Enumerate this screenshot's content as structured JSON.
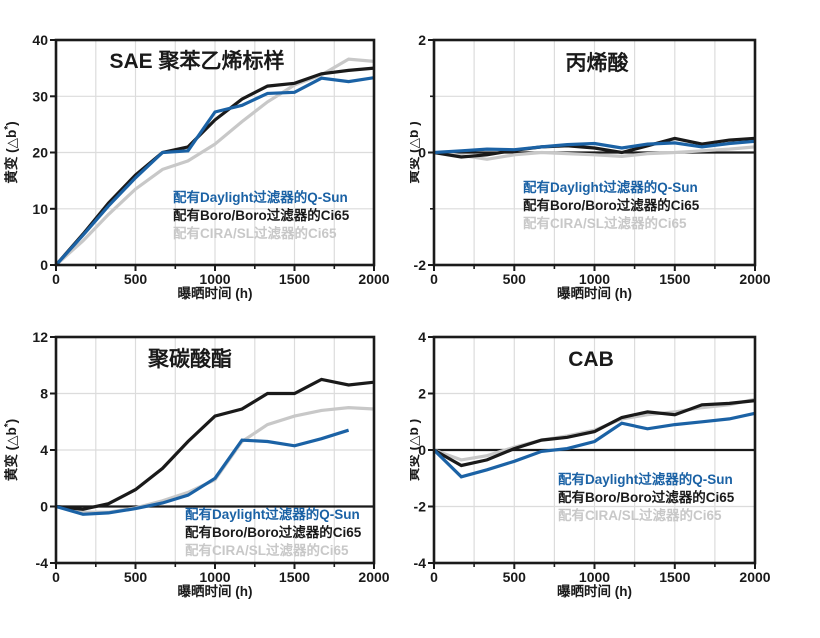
{
  "page": {
    "background": "#ffffff"
  },
  "palette": {
    "qsun_blue": "#1b62a5",
    "ci65_black": "#1a1a1a",
    "cira_gray": "#c8c8c8",
    "grid_gray": "#dcdcdc",
    "axis_black": "#1a1a1a"
  },
  "legend_labels": [
    "配有Daylight过滤器的Q-Sun",
    "配有Boro/Boro过滤器的Ci65",
    "配有CIRA/SL过滤器的Ci65"
  ],
  "chart_data": [
    {
      "id": "sae-polystyrene",
      "type": "line",
      "title": "SAE 聚苯乙烯标样",
      "xlabel": "曝晒时间  (h)",
      "ylabel": "黄变 (△b*)",
      "xlim": [
        0,
        2000
      ],
      "ylim": [
        0,
        40
      ],
      "xticks": [
        0,
        500,
        1000,
        1500,
        2000
      ],
      "yticks": [
        0,
        10,
        20,
        30,
        40
      ],
      "yticks_minor": [],
      "ygrid": [
        10,
        20,
        30
      ],
      "xgrid_step": 250,
      "zero_line": false,
      "grid": true,
      "legend_position": "inside-lower-middle",
      "x": [
        0,
        170,
        330,
        500,
        670,
        830,
        1000,
        1170,
        1330,
        1500,
        1670,
        1840,
        2000
      ],
      "series": [
        {
          "key": "qsun-daylight",
          "name": "配有Daylight过滤器的Q-Sun",
          "color": "#1b62a5",
          "values": [
            0,
            5.3,
            10.5,
            15.5,
            20,
            20.3,
            27.2,
            28.4,
            30.5,
            30.7,
            33.2,
            32.6,
            33.3
          ]
        },
        {
          "key": "ci65-boro",
          "name": "配有Boro/Boro过滤器的Ci65",
          "color": "#1a1a1a",
          "values": [
            0,
            5.5,
            11,
            16,
            20,
            21,
            25.8,
            29.5,
            31.8,
            32.3,
            34,
            34.6,
            35
          ]
        },
        {
          "key": "ci65-cira",
          "name": "配有CIRA/SL过滤器的Ci65",
          "color": "#c8c8c8",
          "values": [
            0,
            4.3,
            9,
            13.5,
            17,
            18.5,
            21.5,
            25.5,
            29,
            32,
            33.8,
            36.6,
            36.2
          ]
        }
      ]
    },
    {
      "id": "acrylic",
      "type": "line",
      "title": "丙烯酸",
      "xlabel": "曝晒时间  (h)",
      "ylabel": "黄变 (△b*)",
      "xlim": [
        0,
        2000
      ],
      "ylim": [
        -2,
        2
      ],
      "xticks": [
        0,
        500,
        1000,
        1500,
        2000
      ],
      "yticks": [
        -2,
        0,
        2
      ],
      "yticks_minor": [
        -1,
        1
      ],
      "ygrid": [
        -1,
        1
      ],
      "xgrid_step": 250,
      "zero_line": true,
      "grid": true,
      "legend_position": "inside-lower-middle",
      "x": [
        0,
        170,
        330,
        500,
        670,
        830,
        1000,
        1170,
        1330,
        1500,
        1670,
        1840,
        2000
      ],
      "series": [
        {
          "key": "qsun-daylight",
          "name": "配有Daylight过滤器的Q-Sun",
          "color": "#1b62a5",
          "values": [
            0,
            0.03,
            0.06,
            0.05,
            0.1,
            0.14,
            0.16,
            0.08,
            0.15,
            0.17,
            0.1,
            0.16,
            0.2
          ]
        },
        {
          "key": "ci65-boro",
          "name": "配有Boro/Boro过滤器的Ci65",
          "color": "#1a1a1a",
          "values": [
            0,
            -0.08,
            -0.04,
            0.04,
            0.1,
            0.12,
            0.08,
            0,
            0.12,
            0.25,
            0.15,
            0.22,
            0.25
          ]
        },
        {
          "key": "ci65-cira",
          "name": "配有CIRA/SL过滤器的Ci65",
          "color": "#c8c8c8",
          "values": [
            0,
            -0.05,
            -0.12,
            -0.04,
            0,
            -0.02,
            -0.04,
            -0.07,
            -0.02,
            0,
            0.03,
            0.06,
            0.1
          ]
        }
      ]
    },
    {
      "id": "polycarbonate",
      "type": "line",
      "title": "聚碳酸酯",
      "xlabel": "曝晒时间  (h)",
      "ylabel": "黄变 (△b*)",
      "xlim": [
        0,
        2000
      ],
      "ylim": [
        -4,
        12
      ],
      "xticks": [
        0,
        500,
        1000,
        1500,
        2000
      ],
      "yticks": [
        -4,
        0,
        4,
        8,
        12
      ],
      "yticks_minor": [],
      "ygrid": [
        4,
        8
      ],
      "xgrid_step": 250,
      "zero_line": true,
      "grid": true,
      "legend_position": "inside-lower-middle",
      "x": [
        0,
        170,
        330,
        500,
        670,
        830,
        1000,
        1170,
        1330,
        1500,
        1670,
        1840,
        2000
      ],
      "series": [
        {
          "key": "qsun-daylight",
          "name": "配有Daylight过滤器的Q-Sun",
          "color": "#1b62a5",
          "values": [
            0,
            -0.55,
            -0.45,
            -0.15,
            0.25,
            0.8,
            2,
            4.7,
            4.6,
            4.3,
            4.8,
            5.4,
            null
          ]
        },
        {
          "key": "ci65-boro",
          "name": "配有Boro/Boro过滤器的Ci65",
          "color": "#1a1a1a",
          "values": [
            0,
            -0.2,
            0.2,
            1.2,
            2.7,
            4.6,
            6.4,
            6.9,
            8,
            8,
            9,
            8.6,
            8.8
          ]
        },
        {
          "key": "ci65-cira",
          "name": "配有CIRA/SL过滤器的Ci65",
          "color": "#c8c8c8",
          "values": [
            0,
            -0.4,
            -0.4,
            -0.1,
            0.4,
            1,
            1.9,
            4.6,
            5.8,
            6.4,
            6.8,
            7,
            6.9
          ]
        }
      ]
    },
    {
      "id": "cab",
      "type": "line",
      "title": "CAB",
      "xlabel": "曝晒时间  (h)",
      "ylabel": "黄变 (△b*)",
      "xlim": [
        0,
        2000
      ],
      "ylim": [
        -4,
        4
      ],
      "xticks": [
        0,
        500,
        1000,
        1500,
        2000
      ],
      "yticks": [
        -4,
        -2,
        0,
        2,
        4
      ],
      "yticks_minor": [],
      "ygrid": [
        -2,
        2
      ],
      "xgrid_step": 250,
      "zero_line": true,
      "grid": true,
      "legend_position": "inside-lower-middle",
      "x": [
        0,
        170,
        330,
        500,
        670,
        830,
        1000,
        1170,
        1330,
        1500,
        1670,
        1840,
        2000
      ],
      "series": [
        {
          "key": "qsun-daylight",
          "name": "配有Daylight过滤器的Q-Sun",
          "color": "#1b62a5",
          "values": [
            0,
            -0.95,
            -0.7,
            -0.4,
            -0.05,
            0.05,
            0.3,
            0.95,
            0.75,
            0.9,
            1,
            1.1,
            1.3
          ]
        },
        {
          "key": "ci65-boro",
          "name": "配有Boro/Boro过滤器的Ci65",
          "color": "#1a1a1a",
          "values": [
            0,
            -0.55,
            -0.35,
            0.05,
            0.35,
            0.45,
            0.65,
            1.15,
            1.35,
            1.25,
            1.6,
            1.65,
            1.75
          ]
        },
        {
          "key": "ci65-cira",
          "name": "配有CIRA/SL过滤器的Ci65",
          "color": "#c8c8c8",
          "values": [
            0,
            -0.35,
            -0.2,
            0.1,
            0.35,
            0.5,
            0.7,
            1.1,
            1.25,
            1.35,
            1.5,
            1.6,
            1.8
          ]
        }
      ]
    }
  ]
}
